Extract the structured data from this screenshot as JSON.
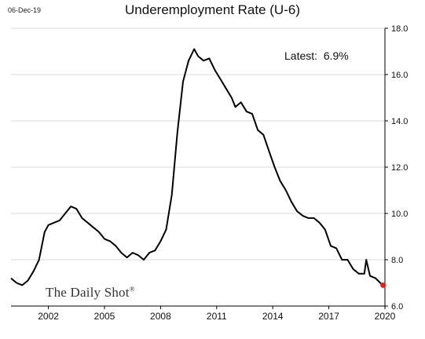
{
  "header": {
    "date_stamp": "06-Dec-19",
    "title": "Underemployment Rate (U-6)"
  },
  "annotation": {
    "latest_label": "Latest:",
    "latest_value": "6.9%"
  },
  "brand": {
    "name": "The Daily Shot",
    "mark": "®"
  },
  "colors": {
    "line": "#000000",
    "last_point": "#e02020",
    "grid": "#d9d9d9",
    "axis": "#000000"
  },
  "chart_data": {
    "type": "line",
    "title": "Underemployment Rate (U-6)",
    "xlabel": "",
    "ylabel": "",
    "x_ticks": [
      "2002",
      "2005",
      "2008",
      "2011",
      "2014",
      "2017",
      "2020"
    ],
    "y_ticks": [
      "6.0",
      "8.0",
      "10.0",
      "12.0",
      "14.0",
      "16.0",
      "18.0"
    ],
    "xlim": [
      2000.0,
      2020.0
    ],
    "ylim": [
      6.0,
      18.0
    ],
    "grid": "horizontal",
    "y_axis_side": "right",
    "series": [
      {
        "x": [
          2000.0,
          2000.3,
          2000.6,
          2000.9,
          2001.2,
          2001.5,
          2001.8,
          2002.0,
          2002.3,
          2002.6,
          2002.9,
          2003.2,
          2003.5,
          2003.8,
          2004.1,
          2004.4,
          2004.7,
          2005.0,
          2005.3,
          2005.6,
          2005.9,
          2006.2,
          2006.5,
          2006.8,
          2007.1,
          2007.4,
          2007.7,
          2008.0,
          2008.3,
          2008.6,
          2008.9,
          2009.2,
          2009.5,
          2009.8,
          2010.0,
          2010.3,
          2010.6,
          2010.9,
          2011.2,
          2011.5,
          2011.8,
          2012.0,
          2012.3,
          2012.6,
          2012.9,
          2013.2,
          2013.5,
          2013.8,
          2014.1,
          2014.4,
          2014.7,
          2015.0,
          2015.3,
          2015.6,
          2015.9,
          2016.2,
          2016.5,
          2016.8,
          2017.1,
          2017.4,
          2017.7,
          2018.0,
          2018.3,
          2018.6,
          2018.9,
          2019.0,
          2019.2,
          2019.5,
          2019.75,
          2019.9
        ],
        "values": [
          7.2,
          7.0,
          6.9,
          7.1,
          7.5,
          8.0,
          9.2,
          9.5,
          9.6,
          9.7,
          10.0,
          10.3,
          10.2,
          9.8,
          9.6,
          9.4,
          9.2,
          8.9,
          8.8,
          8.6,
          8.3,
          8.1,
          8.3,
          8.2,
          8.0,
          8.3,
          8.4,
          8.8,
          9.3,
          10.8,
          13.5,
          15.7,
          16.6,
          17.1,
          16.8,
          16.6,
          16.7,
          16.2,
          15.8,
          15.4,
          15.0,
          14.6,
          14.8,
          14.4,
          14.3,
          13.6,
          13.4,
          12.7,
          12.0,
          11.4,
          11.0,
          10.5,
          10.1,
          9.9,
          9.8,
          9.8,
          9.6,
          9.3,
          8.6,
          8.5,
          8.0,
          8.0,
          7.6,
          7.4,
          7.4,
          8.0,
          7.3,
          7.2,
          7.0,
          6.9
        ]
      }
    ]
  }
}
